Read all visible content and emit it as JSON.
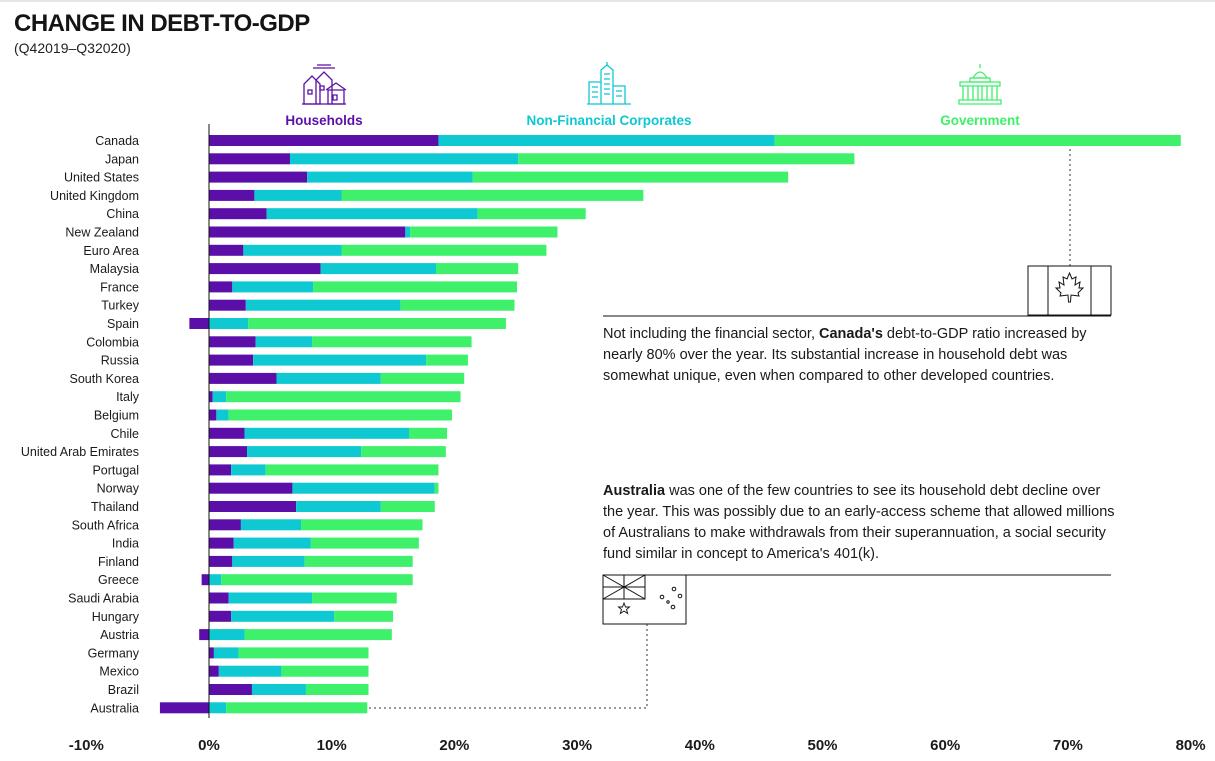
{
  "header": {
    "title": "CHANGE IN DEBT-TO-GDP",
    "subtitle": "(Q42019–Q32020)"
  },
  "colors": {
    "households": "#5b0fa8",
    "corporates": "#0ec8d2",
    "government": "#3ef06a",
    "ink": "#1a1a1a"
  },
  "icons": {
    "households": "houses-icon",
    "corporates": "office-buildings-icon",
    "government": "capitol-building-icon"
  },
  "notes": {
    "canada": {
      "flag": "canada-flag-icon",
      "pre": "Not including the financial sector, ",
      "bold": "Canada's",
      "post": " debt-to-GDP ratio increased by nearly 80% over the year. Its substantial increase in household debt was somewhat unique, even when compared to other developed countries."
    },
    "australia": {
      "flag": "australia-flag-icon",
      "bold": "Australia",
      "post": " was one of the few countries to see its household debt decline over the year. This was possibly due to an early-access scheme that allowed millions of Australians to make withdrawals from their superannuation, a social security fund similar in concept to America's 401(k)."
    }
  },
  "chart_data": {
    "type": "bar",
    "orientation": "horizontal",
    "stacked": true,
    "title": "CHANGE IN DEBT-TO-GDP",
    "subtitle": "(Q42019–Q32020)",
    "xlim": [
      -10,
      80
    ],
    "xticks": [
      -10,
      0,
      10,
      20,
      30,
      40,
      50,
      60,
      70,
      80
    ],
    "tick_suffix": "%",
    "legend_position": "top",
    "categories": [
      "Canada",
      "Japan",
      "United States",
      "United Kingdom",
      "China",
      "New Zealand",
      "Euro Area",
      "Malaysia",
      "France",
      "Turkey",
      "Spain",
      "Colombia",
      "Russia",
      "South Korea",
      "Italy",
      "Belgium",
      "Chile",
      "United Arab Emirates",
      "Portugal",
      "Norway",
      "Thailand",
      "South Africa",
      "India",
      "Finland",
      "Greece",
      "Saudi Arabia",
      "Hungary",
      "Austria",
      "Germany",
      "Mexico",
      "Brazil",
      "Australia"
    ],
    "series": [
      {
        "name": "Households",
        "color": "#5b0fa8",
        "values": [
          18.7,
          6.6,
          8.0,
          3.7,
          4.7,
          16.0,
          2.8,
          9.1,
          1.9,
          3.0,
          -1.6,
          3.8,
          3.6,
          5.5,
          0.3,
          0.6,
          2.9,
          3.1,
          1.8,
          6.8,
          7.1,
          2.6,
          2.0,
          1.9,
          -0.6,
          1.6,
          1.8,
          -0.8,
          0.4,
          0.8,
          3.5,
          -4.0
        ]
      },
      {
        "name": "Non-Financial Corporates",
        "color": "#0ec8d2",
        "values": [
          27.4,
          18.6,
          13.5,
          7.1,
          17.2,
          0.4,
          8.0,
          9.4,
          6.6,
          12.6,
          3.2,
          4.6,
          14.1,
          8.5,
          1.1,
          1.0,
          13.4,
          9.3,
          2.8,
          11.6,
          6.9,
          4.9,
          6.3,
          5.9,
          1.0,
          6.8,
          8.4,
          2.9,
          2.0,
          5.1,
          4.4,
          1.4
        ]
      },
      {
        "name": "Government",
        "color": "#3ef06a",
        "values": [
          33.1,
          27.4,
          25.7,
          24.6,
          8.8,
          12.0,
          16.7,
          6.7,
          16.6,
          9.3,
          21.0,
          13.0,
          3.4,
          6.8,
          19.1,
          18.2,
          3.1,
          6.9,
          14.1,
          0.3,
          4.4,
          9.9,
          8.8,
          8.8,
          15.6,
          6.9,
          4.8,
          12.0,
          10.6,
          7.1,
          5.1,
          11.5
        ]
      }
    ]
  }
}
